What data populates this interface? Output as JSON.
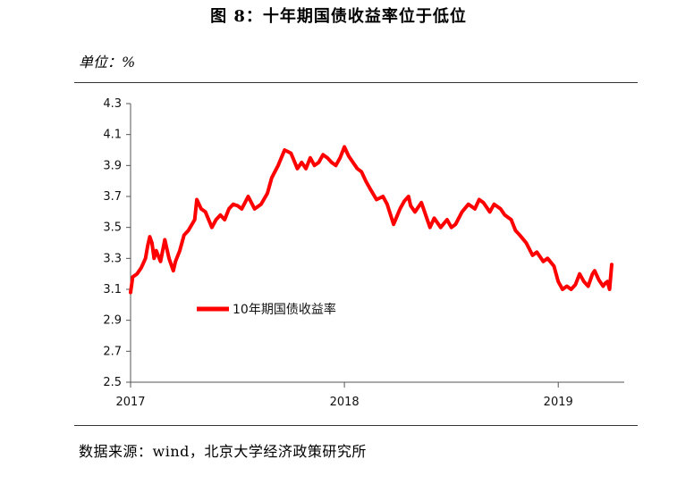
{
  "figure": {
    "title": "图 8：十年期国债收益率位于低位",
    "unit_label": "单位：%",
    "source": "数据来源：wind，北京大学经济政策研究所"
  },
  "chart_data": {
    "type": "line",
    "title": "图 8：十年期国债收益率位于低位",
    "xlabel": "",
    "ylabel": "",
    "x_ticks": [
      "2017",
      "2018",
      "2019"
    ],
    "x_range": [
      2017.0,
      2019.25
    ],
    "ylim": [
      2.5,
      4.3
    ],
    "y_ticks": [
      "2.5",
      "2.7",
      "2.9",
      "3.1",
      "3.3",
      "3.5",
      "3.7",
      "3.9",
      "4.1",
      "4.3"
    ],
    "grid": false,
    "legend_position": "center-left",
    "series": [
      {
        "name": "10年期国债收益率",
        "color": "#ff0000",
        "x": [
          2017.0,
          2017.01,
          2017.03,
          2017.05,
          2017.07,
          2017.08,
          2017.09,
          2017.1,
          2017.11,
          2017.12,
          2017.14,
          2017.16,
          2017.18,
          2017.2,
          2017.21,
          2017.23,
          2017.25,
          2017.27,
          2017.3,
          2017.31,
          2017.33,
          2017.35,
          2017.38,
          2017.4,
          2017.42,
          2017.44,
          2017.46,
          2017.48,
          2017.5,
          2017.52,
          2017.55,
          2017.58,
          2017.61,
          2017.64,
          2017.66,
          2017.69,
          2017.72,
          2017.75,
          2017.78,
          2017.8,
          2017.82,
          2017.84,
          2017.86,
          2017.88,
          2017.9,
          2017.92,
          2017.94,
          2017.96,
          2017.98,
          2018.0,
          2018.02,
          2018.04,
          2018.06,
          2018.08,
          2018.1,
          2018.12,
          2018.15,
          2018.18,
          2018.2,
          2018.23,
          2018.26,
          2018.28,
          2018.3,
          2018.31,
          2018.33,
          2018.36,
          2018.38,
          2018.4,
          2018.42,
          2018.45,
          2018.48,
          2018.5,
          2018.52,
          2018.55,
          2018.58,
          2018.61,
          2018.63,
          2018.65,
          2018.68,
          2018.7,
          2018.73,
          2018.75,
          2018.78,
          2018.8,
          2018.82,
          2018.85,
          2018.88,
          2018.9,
          2018.93,
          2018.95,
          2018.98,
          2019.0,
          2019.02,
          2019.04,
          2019.06,
          2019.08,
          2019.1,
          2019.12,
          2019.14,
          2019.16,
          2019.17,
          2019.19,
          2019.21,
          2019.22,
          2019.23,
          2019.24,
          2019.25
        ],
        "values": [
          3.08,
          3.18,
          3.2,
          3.24,
          3.3,
          3.38,
          3.44,
          3.4,
          3.3,
          3.35,
          3.28,
          3.42,
          3.3,
          3.22,
          3.28,
          3.35,
          3.45,
          3.48,
          3.55,
          3.68,
          3.62,
          3.6,
          3.5,
          3.55,
          3.58,
          3.55,
          3.62,
          3.65,
          3.64,
          3.62,
          3.7,
          3.62,
          3.65,
          3.72,
          3.82,
          3.9,
          4.0,
          3.98,
          3.88,
          3.92,
          3.88,
          3.95,
          3.9,
          3.92,
          3.97,
          3.95,
          3.92,
          3.9,
          3.95,
          4.02,
          3.96,
          3.92,
          3.88,
          3.86,
          3.8,
          3.75,
          3.68,
          3.7,
          3.65,
          3.52,
          3.62,
          3.67,
          3.7,
          3.64,
          3.6,
          3.66,
          3.58,
          3.5,
          3.56,
          3.5,
          3.55,
          3.5,
          3.52,
          3.6,
          3.65,
          3.62,
          3.68,
          3.66,
          3.6,
          3.65,
          3.62,
          3.58,
          3.55,
          3.48,
          3.45,
          3.4,
          3.32,
          3.34,
          3.28,
          3.3,
          3.25,
          3.15,
          3.1,
          3.12,
          3.1,
          3.13,
          3.2,
          3.15,
          3.12,
          3.2,
          3.22,
          3.16,
          3.12,
          3.14,
          3.15,
          3.1,
          3.26
        ]
      }
    ]
  }
}
